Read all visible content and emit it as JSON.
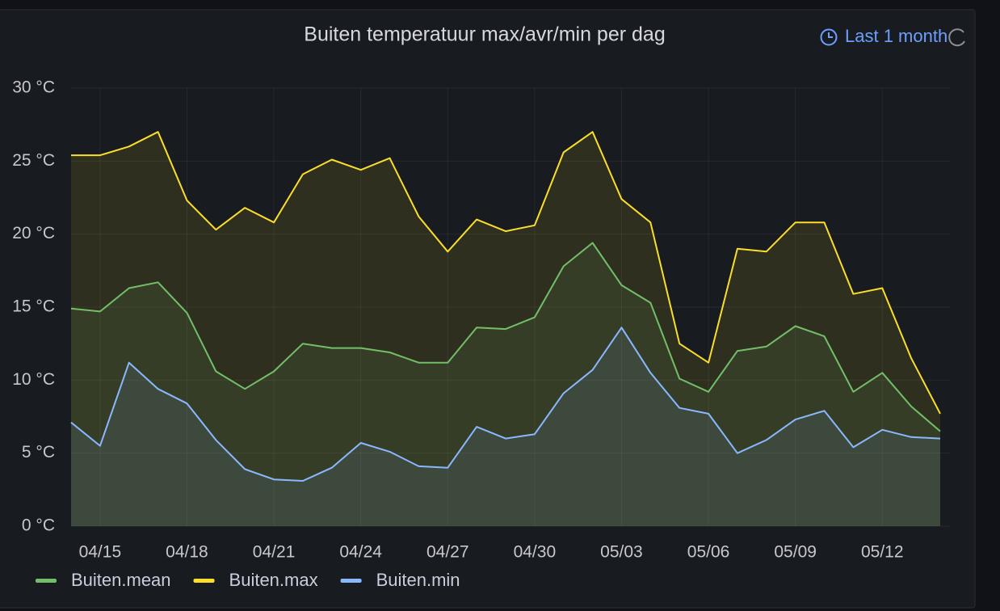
{
  "time_range": "Last 1 month",
  "chart_data": {
    "type": "line",
    "title": "Buiten temperatuur max/avr/min per dag",
    "x": [
      "04/14",
      "04/15",
      "04/16",
      "04/17",
      "04/18",
      "04/19",
      "04/20",
      "04/21",
      "04/22",
      "04/23",
      "04/24",
      "04/25",
      "04/26",
      "04/27",
      "04/28",
      "04/29",
      "04/30",
      "05/01",
      "05/02",
      "05/03",
      "05/04",
      "05/05",
      "05/06",
      "05/07",
      "05/08",
      "05/09",
      "05/10",
      "05/11",
      "05/12",
      "05/13",
      "05/14"
    ],
    "series": [
      {
        "name": "Buiten.mean",
        "color": "#73bf69",
        "values": [
          14.9,
          14.7,
          16.3,
          16.7,
          14.6,
          10.6,
          9.4,
          10.6,
          12.5,
          12.2,
          12.2,
          11.9,
          11.2,
          11.2,
          13.6,
          13.5,
          14.3,
          17.8,
          19.4,
          16.5,
          15.3,
          10.1,
          9.2,
          12.0,
          12.3,
          13.7,
          13.0,
          9.2,
          10.5,
          8.2,
          6.5
        ]
      },
      {
        "name": "Buiten.max",
        "color": "#fade2a",
        "values": [
          25.4,
          25.4,
          26.0,
          27.0,
          22.3,
          20.3,
          21.8,
          20.8,
          24.1,
          25.1,
          24.4,
          25.2,
          21.2,
          18.8,
          21.0,
          20.2,
          20.6,
          25.6,
          27.0,
          22.4,
          20.8,
          12.5,
          11.2,
          19.0,
          18.8,
          20.8,
          20.8,
          15.9,
          16.3,
          11.5,
          7.7
        ]
      },
      {
        "name": "Buiten.min",
        "color": "#8ab8ff",
        "values": [
          7.1,
          5.5,
          11.2,
          9.4,
          8.4,
          5.9,
          3.9,
          3.2,
          3.1,
          4.0,
          5.7,
          5.1,
          4.1,
          4.0,
          6.8,
          6.0,
          6.3,
          9.1,
          10.7,
          13.6,
          10.5,
          8.1,
          7.7,
          5.0,
          5.9,
          7.3,
          7.9,
          5.4,
          6.6,
          6.1,
          6.0
        ]
      }
    ],
    "xlim": [
      "04/14",
      "05/14"
    ],
    "xticks": [
      "04/15",
      "04/18",
      "04/21",
      "04/24",
      "04/27",
      "04/30",
      "05/03",
      "05/06",
      "05/09",
      "05/12"
    ],
    "ylim": [
      0,
      30
    ],
    "yticks": [
      {
        "value": 0,
        "label": "0 °C"
      },
      {
        "value": 5,
        "label": "5 °C"
      },
      {
        "value": 10,
        "label": "10 °C"
      },
      {
        "value": 15,
        "label": "15 °C"
      },
      {
        "value": 20,
        "label": "20 °C"
      },
      {
        "value": 25,
        "label": "25 °C"
      },
      {
        "value": 30,
        "label": "30 °C"
      }
    ],
    "grid": true,
    "legend": "bottom-left"
  }
}
